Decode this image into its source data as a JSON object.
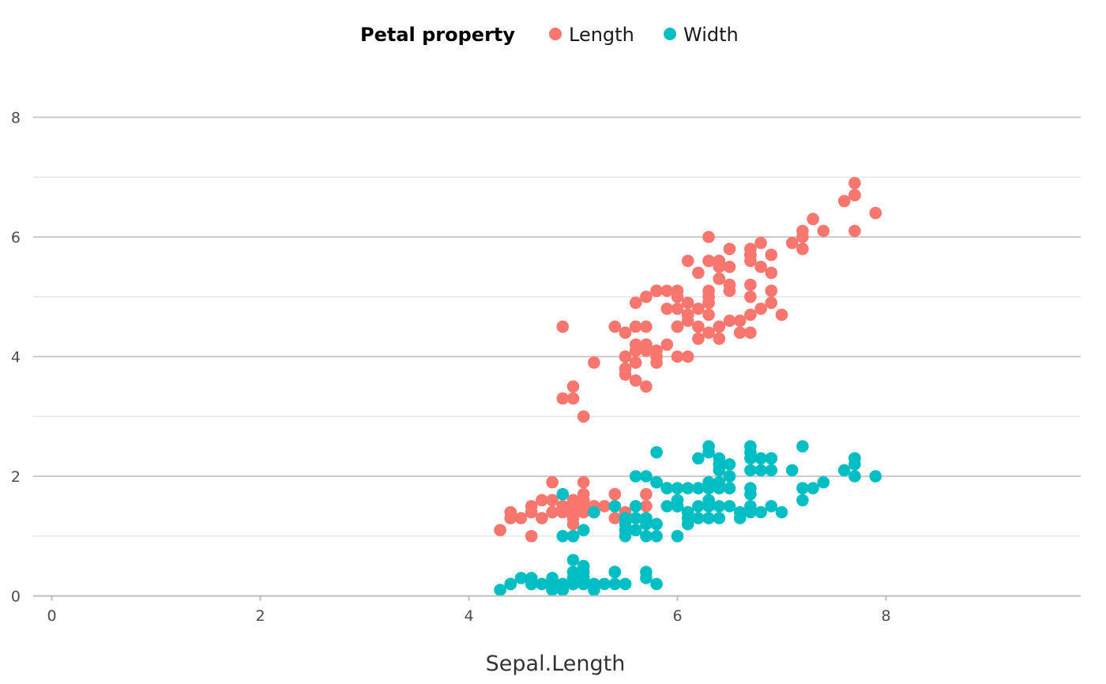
{
  "chart_data": {
    "type": "scatter",
    "xlabel": "Sepal.Length",
    "ylabel": "",
    "xlim": [
      -0.3,
      9.7
    ],
    "ylim": [
      0,
      8.8
    ],
    "x_ticks": [
      0,
      2,
      4,
      6,
      8
    ],
    "y_ticks": [
      0,
      2,
      4,
      6,
      8
    ],
    "y_minor_ticks": [
      1,
      3,
      5,
      7
    ],
    "grid": "horizontal",
    "legend": {
      "title": "Petal property",
      "placement": "top-center",
      "entries": [
        {
          "label": "Length",
          "color": "#F8766D"
        },
        {
          "label": "Width",
          "color": "#00BFC4"
        }
      ]
    },
    "x": [
      5.1,
      4.9,
      4.7,
      4.6,
      5.0,
      5.4,
      4.6,
      5.0,
      4.4,
      4.9,
      5.4,
      4.8,
      4.8,
      4.3,
      5.8,
      5.7,
      5.4,
      5.1,
      5.7,
      5.1,
      5.4,
      5.1,
      4.6,
      5.1,
      4.8,
      5.0,
      5.0,
      5.2,
      5.2,
      4.7,
      4.8,
      5.4,
      5.2,
      5.5,
      4.9,
      5.0,
      5.5,
      4.9,
      4.4,
      5.1,
      5.0,
      4.5,
      4.4,
      5.0,
      5.1,
      4.8,
      5.1,
      4.6,
      5.3,
      5.0,
      7.0,
      6.4,
      6.9,
      5.5,
      6.5,
      5.7,
      6.3,
      4.9,
      6.6,
      5.2,
      5.0,
      5.9,
      6.0,
      6.1,
      5.6,
      6.7,
      5.6,
      5.8,
      6.2,
      5.6,
      5.9,
      6.1,
      6.3,
      6.1,
      6.4,
      6.6,
      6.8,
      6.7,
      6.0,
      5.7,
      5.5,
      5.5,
      5.8,
      6.0,
      5.4,
      6.0,
      6.7,
      6.3,
      5.6,
      5.5,
      5.5,
      6.1,
      5.8,
      5.0,
      5.6,
      5.7,
      5.7,
      6.2,
      5.1,
      5.7,
      6.3,
      5.8,
      7.1,
      6.3,
      6.5,
      7.6,
      4.9,
      7.3,
      6.7,
      7.2,
      6.5,
      6.4,
      6.8,
      5.7,
      5.8,
      6.4,
      6.5,
      7.7,
      7.7,
      6.0,
      6.9,
      5.6,
      7.7,
      6.3,
      6.7,
      7.2,
      6.2,
      6.1,
      6.4,
      7.2,
      7.4,
      7.9,
      6.4,
      6.3,
      6.1,
      7.7,
      6.3,
      6.4,
      6.0,
      6.9,
      6.7,
      6.9,
      5.8,
      6.8,
      6.7,
      6.7,
      6.3,
      6.5,
      6.2,
      5.9
    ],
    "series": [
      {
        "name": "Length",
        "color": "#F8766D",
        "values": [
          1.4,
          1.4,
          1.3,
          1.5,
          1.4,
          1.7,
          1.4,
          1.5,
          1.4,
          1.5,
          1.5,
          1.6,
          1.4,
          1.1,
          1.2,
          1.5,
          1.3,
          1.4,
          1.7,
          1.5,
          1.7,
          1.5,
          1.0,
          1.7,
          1.9,
          1.6,
          1.6,
          1.5,
          1.4,
          1.6,
          1.6,
          1.5,
          1.5,
          1.4,
          1.5,
          1.2,
          1.3,
          1.4,
          1.3,
          1.5,
          1.3,
          1.3,
          1.3,
          1.6,
          1.9,
          1.4,
          1.6,
          1.4,
          1.5,
          1.4,
          4.7,
          4.5,
          4.9,
          4.0,
          4.6,
          4.5,
          4.7,
          3.3,
          4.6,
          3.9,
          3.5,
          4.2,
          4.0,
          4.7,
          3.6,
          4.4,
          4.5,
          4.1,
          4.5,
          3.9,
          4.8,
          4.0,
          4.9,
          4.7,
          4.3,
          4.4,
          4.8,
          5.0,
          4.5,
          3.5,
          3.8,
          3.7,
          3.9,
          5.1,
          4.5,
          4.5,
          4.7,
          4.4,
          4.1,
          4.0,
          4.4,
          4.6,
          4.0,
          3.3,
          4.2,
          4.2,
          4.2,
          4.3,
          3.0,
          4.1,
          6.0,
          5.1,
          5.9,
          5.6,
          5.8,
          6.6,
          4.5,
          6.3,
          5.8,
          6.1,
          5.1,
          5.3,
          5.5,
          5.0,
          5.1,
          5.3,
          5.5,
          6.7,
          6.9,
          5.0,
          5.7,
          4.9,
          6.7,
          4.9,
          5.7,
          6.0,
          4.8,
          4.9,
          5.6,
          5.8,
          6.1,
          6.4,
          5.6,
          5.1,
          5.6,
          6.1,
          5.6,
          5.5,
          4.8,
          5.4,
          5.6,
          5.1,
          5.1,
          5.9,
          5.7,
          5.2,
          5.0,
          5.2,
          5.4,
          5.1
        ]
      },
      {
        "name": "Width",
        "color": "#00BFC4",
        "values": [
          0.2,
          0.2,
          0.2,
          0.2,
          0.2,
          0.4,
          0.3,
          0.2,
          0.2,
          0.1,
          0.2,
          0.2,
          0.1,
          0.1,
          0.2,
          0.4,
          0.4,
          0.3,
          0.3,
          0.3,
          0.2,
          0.4,
          0.2,
          0.5,
          0.2,
          0.2,
          0.4,
          0.2,
          0.2,
          0.2,
          0.2,
          0.4,
          0.1,
          0.2,
          0.2,
          0.2,
          0.2,
          0.1,
          0.2,
          0.2,
          0.3,
          0.3,
          0.2,
          0.6,
          0.4,
          0.3,
          0.2,
          0.2,
          0.2,
          0.2,
          1.4,
          1.5,
          1.5,
          1.3,
          1.5,
          1.3,
          1.6,
          1.0,
          1.3,
          1.4,
          1.0,
          1.5,
          1.0,
          1.4,
          1.3,
          1.4,
          1.5,
          1.0,
          1.5,
          1.1,
          1.8,
          1.3,
          1.5,
          1.2,
          1.3,
          1.4,
          1.4,
          1.7,
          1.5,
          1.0,
          1.1,
          1.0,
          1.2,
          1.6,
          1.5,
          1.6,
          1.5,
          1.3,
          1.3,
          1.3,
          1.2,
          1.4,
          1.2,
          1.0,
          1.3,
          1.2,
          1.3,
          1.3,
          1.1,
          1.3,
          2.5,
          1.9,
          2.1,
          1.8,
          2.2,
          2.1,
          1.7,
          1.8,
          1.8,
          2.5,
          2.0,
          1.9,
          2.1,
          2.0,
          2.4,
          2.3,
          1.8,
          2.2,
          2.3,
          1.5,
          2.3,
          2.0,
          2.0,
          1.8,
          2.1,
          1.8,
          1.8,
          1.8,
          2.1,
          1.6,
          1.9,
          2.0,
          2.2,
          1.5,
          1.4,
          2.3,
          2.4,
          1.8,
          1.8,
          2.1,
          2.4,
          2.3,
          1.9,
          2.3,
          2.5,
          2.3,
          1.9,
          2.0,
          2.3,
          1.8
        ]
      }
    ]
  }
}
